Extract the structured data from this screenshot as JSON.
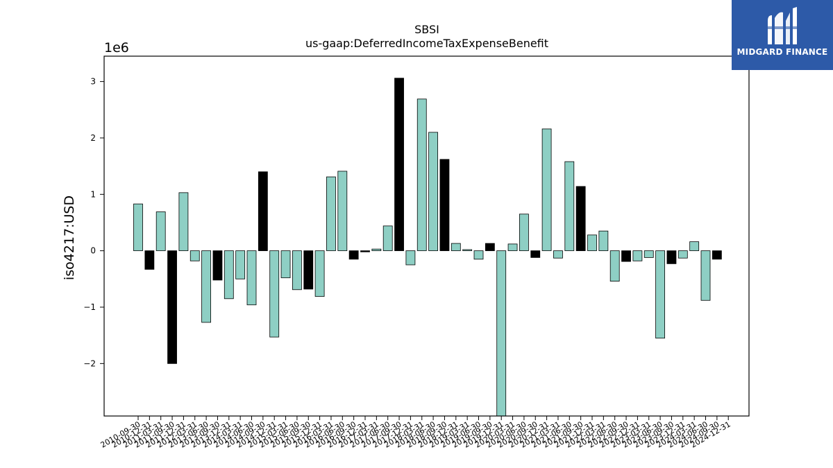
{
  "brand": {
    "name": "MIDGARD FINANCE",
    "bg": "#2d5aa8"
  },
  "colors": {
    "primary": "#8ecfc4",
    "alternate": "#000000"
  },
  "chart_data": {
    "type": "bar",
    "title": "SBSI",
    "subtitle": "us-gaap:DeferredIncomeTaxExpenseBenefit",
    "ylabel": "iso4217:USD",
    "xlabel": "",
    "y_scale_label": "1e6",
    "ylim": [
      -2.93,
      3.45
    ],
    "yticks": [
      -2,
      -1,
      0,
      1,
      2,
      3
    ],
    "ytick_labels": [
      "−2",
      "−1",
      "0",
      "1",
      "2",
      "3"
    ],
    "grid": false,
    "legend": "none",
    "bars": [
      {
        "label": "2010-09-30",
        "value": 0.83,
        "color": "primary"
      },
      {
        "label": "2010-12-31",
        "value": -0.33,
        "color": "alternate"
      },
      {
        "label": "2011-03-31",
        "value": 0.69,
        "color": "primary"
      },
      {
        "label": "2011-09-30",
        "value": -2.0,
        "color": "alternate"
      },
      {
        "label": "2011-12-31",
        "value": 1.03,
        "color": "primary"
      },
      {
        "label": "2012-03-31",
        "value": -0.18,
        "color": "primary"
      },
      {
        "label": "2013-06-30",
        "value": -1.27,
        "color": "primary"
      },
      {
        "label": "2013-09-30",
        "value": -0.52,
        "color": "alternate"
      },
      {
        "label": "2013-12-31",
        "value": -0.85,
        "color": "primary"
      },
      {
        "label": "2014-03-31",
        "value": -0.5,
        "color": "primary"
      },
      {
        "label": "2014-06-30",
        "value": -0.96,
        "color": "primary"
      },
      {
        "label": "2014-09-30",
        "value": 1.4,
        "color": "alternate"
      },
      {
        "label": "2014-12-31",
        "value": -1.53,
        "color": "primary"
      },
      {
        "label": "2015-03-31",
        "value": -0.48,
        "color": "primary"
      },
      {
        "label": "2015-06-30",
        "value": -0.69,
        "color": "primary"
      },
      {
        "label": "2015-09-30",
        "value": -0.68,
        "color": "alternate"
      },
      {
        "label": "2015-12-31",
        "value": -0.81,
        "color": "primary"
      },
      {
        "label": "2016-03-31",
        "value": 1.31,
        "color": "primary"
      },
      {
        "label": "2016-06-30",
        "value": 1.41,
        "color": "primary"
      },
      {
        "label": "2016-09-30",
        "value": -0.15,
        "color": "alternate"
      },
      {
        "label": "2016-12-31",
        "value": -0.02,
        "color": "alternate"
      },
      {
        "label": "2017-03-31",
        "value": 0.03,
        "color": "primary"
      },
      {
        "label": "2017-06-30",
        "value": 0.44,
        "color": "primary"
      },
      {
        "label": "2017-09-30",
        "value": 3.06,
        "color": "alternate"
      },
      {
        "label": "2017-12-31",
        "value": -0.25,
        "color": "primary"
      },
      {
        "label": "2018-03-31",
        "value": 2.69,
        "color": "primary"
      },
      {
        "label": "2018-06-30",
        "value": 2.1,
        "color": "primary"
      },
      {
        "label": "2018-09-30",
        "value": 1.62,
        "color": "alternate"
      },
      {
        "label": "2018-12-31",
        "value": 0.13,
        "color": "primary"
      },
      {
        "label": "2019-03-31",
        "value": 0.02,
        "color": "primary"
      },
      {
        "label": "2019-06-30",
        "value": -0.15,
        "color": "primary"
      },
      {
        "label": "2019-09-30",
        "value": 0.13,
        "color": "alternate"
      },
      {
        "label": "2019-12-31",
        "value": -2.93,
        "color": "primary"
      },
      {
        "label": "2020-03-31",
        "value": 0.12,
        "color": "primary"
      },
      {
        "label": "2020-06-30",
        "value": 0.65,
        "color": "primary"
      },
      {
        "label": "2020-09-30",
        "value": -0.12,
        "color": "alternate"
      },
      {
        "label": "2020-12-31",
        "value": 2.16,
        "color": "primary"
      },
      {
        "label": "2021-03-31",
        "value": -0.13,
        "color": "primary"
      },
      {
        "label": "2021-06-30",
        "value": 1.58,
        "color": "primary"
      },
      {
        "label": "2021-09-30",
        "value": 1.14,
        "color": "alternate"
      },
      {
        "label": "2021-12-31",
        "value": 0.28,
        "color": "primary"
      },
      {
        "label": "2022-03-31",
        "value": 0.35,
        "color": "primary"
      },
      {
        "label": "2022-06-30",
        "value": -0.54,
        "color": "primary"
      },
      {
        "label": "2022-09-30",
        "value": -0.19,
        "color": "alternate"
      },
      {
        "label": "2022-12-31",
        "value": -0.18,
        "color": "primary"
      },
      {
        "label": "2023-03-31",
        "value": -0.12,
        "color": "primary"
      },
      {
        "label": "2023-06-30",
        "value": -1.55,
        "color": "primary"
      },
      {
        "label": "2023-09-30",
        "value": -0.23,
        "color": "alternate"
      },
      {
        "label": "2023-12-31",
        "value": -0.13,
        "color": "primary"
      },
      {
        "label": "2024-03-31",
        "value": 0.16,
        "color": "primary"
      },
      {
        "label": "2024-06-30",
        "value": -0.88,
        "color": "primary"
      },
      {
        "label": "2024-09-30",
        "value": -0.15,
        "color": "alternate"
      },
      {
        "label": "2024-12-31",
        "value": null,
        "color": "primary"
      }
    ]
  }
}
